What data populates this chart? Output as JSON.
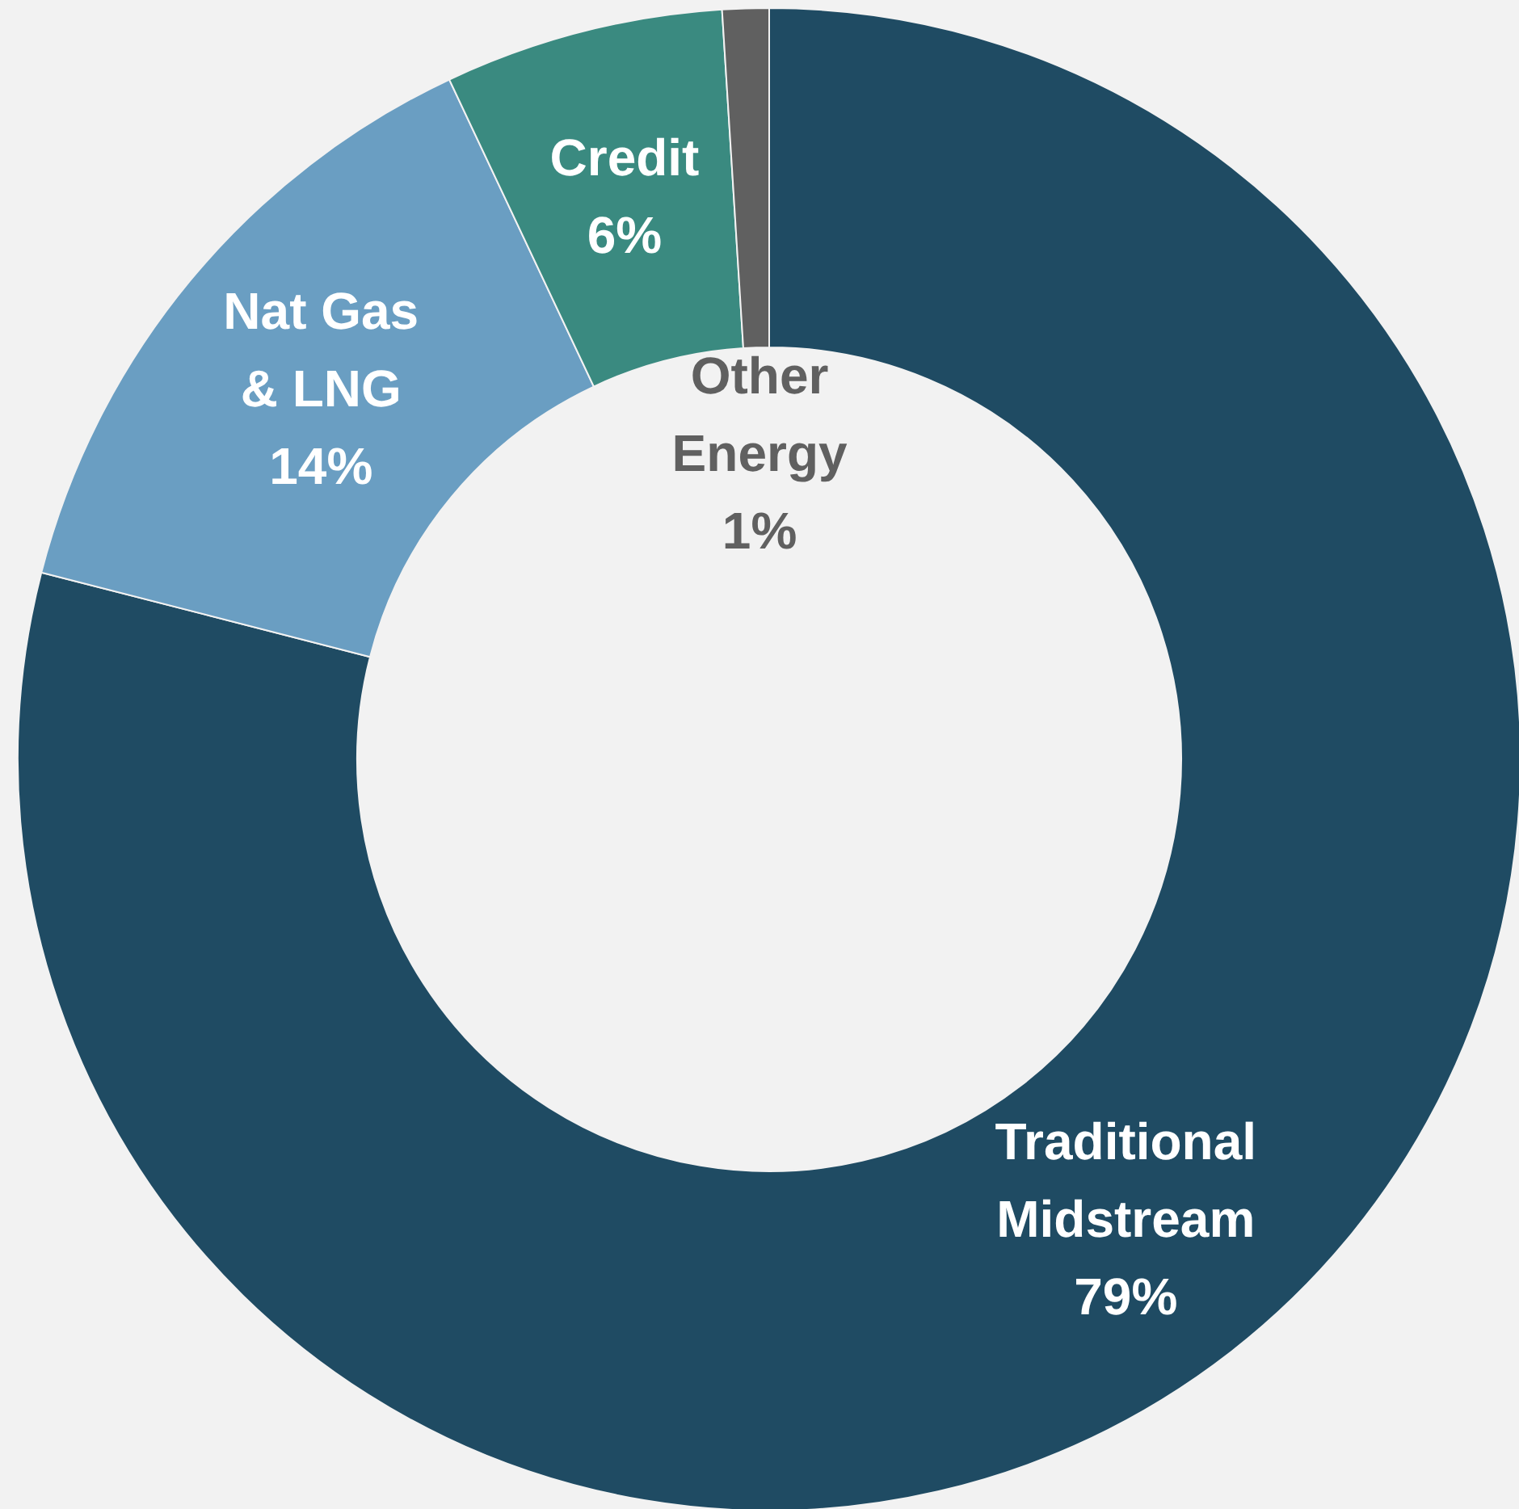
{
  "chart_data": {
    "type": "donut",
    "categories": [
      "Traditional Midstream",
      "Nat Gas & LNG",
      "Credit",
      "Other Energy"
    ],
    "values": [
      79,
      14,
      6,
      1
    ],
    "colors": [
      "#1f4b63",
      "#6a9ec2",
      "#3a8a80",
      "#606060"
    ],
    "value_labels": [
      "79%",
      "14%",
      "6%",
      "1%"
    ]
  }
}
